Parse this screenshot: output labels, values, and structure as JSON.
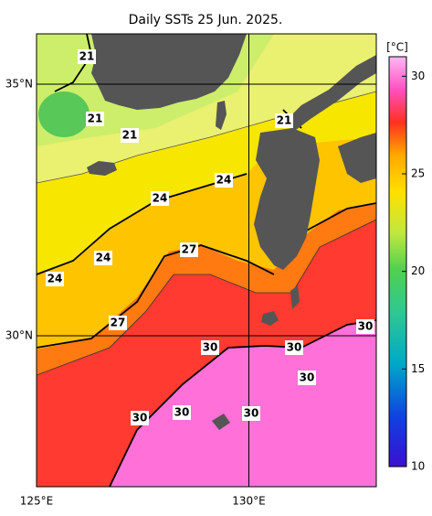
{
  "title": "Daily SSTs 25 Jun. 2025.",
  "map": {
    "xlim": [
      125,
      133
    ],
    "ylim": [
      27,
      36
    ],
    "xticks": [
      {
        "value": 125,
        "label": "125°E"
      },
      {
        "value": 130,
        "label": "130°E"
      }
    ],
    "yticks": [
      {
        "value": 35,
        "label": "35°N"
      },
      {
        "value": 30,
        "label": "30°N"
      }
    ],
    "contour_labels": [
      21,
      21,
      21,
      21,
      24,
      24,
      24,
      24,
      27,
      27,
      30,
      30,
      30,
      30,
      30,
      30,
      30
    ]
  },
  "colorbar": {
    "unit": "[°C]",
    "range": [
      10,
      31
    ],
    "ticks": [
      10,
      15,
      20,
      25,
      30
    ]
  }
}
